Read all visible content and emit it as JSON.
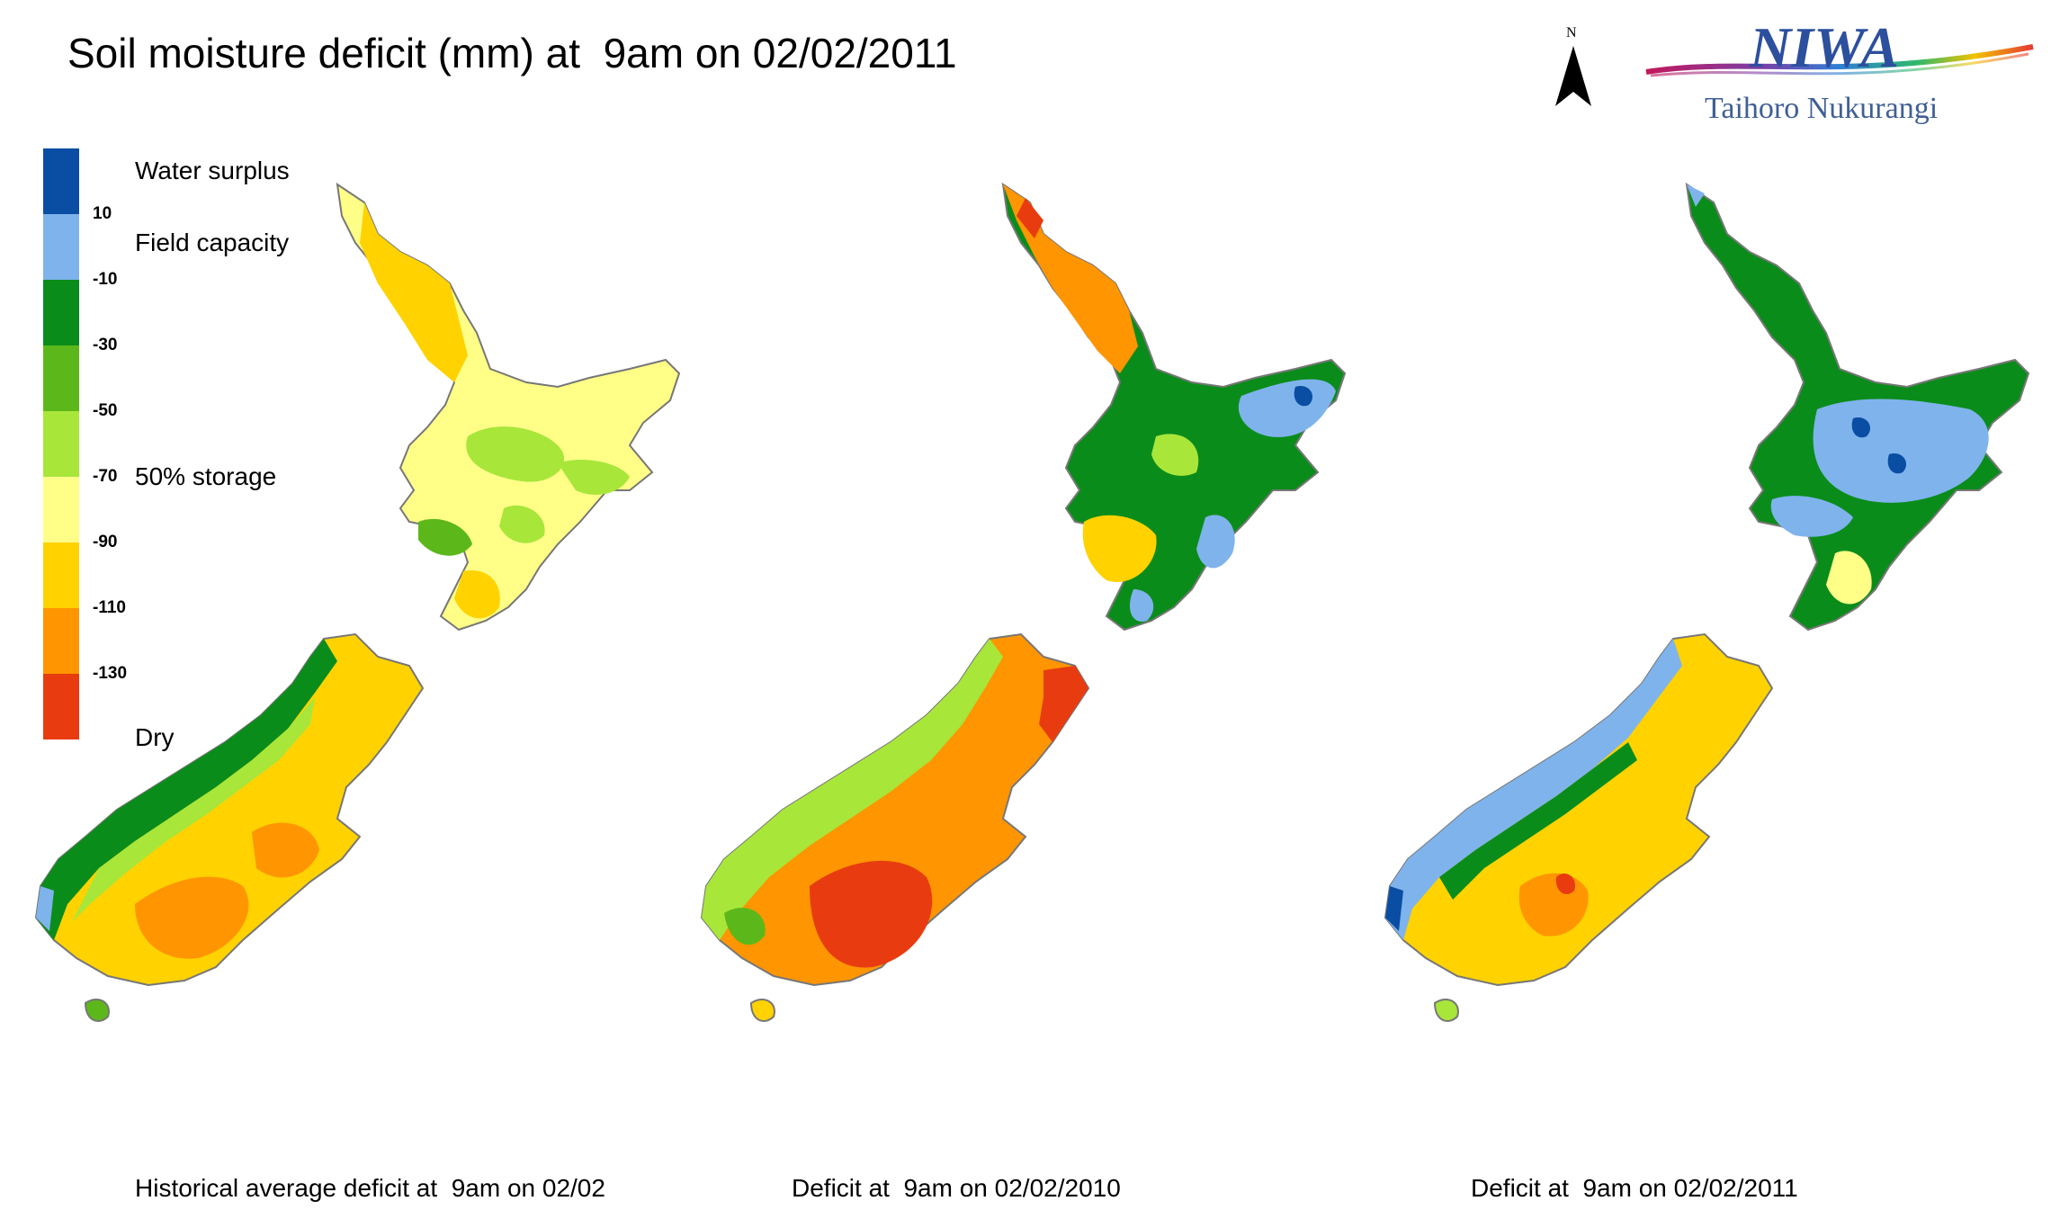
{
  "title": "Soil moisture deficit (mm) at  9am on 02/02/2011",
  "north_arrow": {
    "label": "N",
    "icon": "north-arrow-icon"
  },
  "logo": {
    "name": "NIWA",
    "subtitle": "Taihoro Nukurangi"
  },
  "legend": {
    "colors": [
      "#0a4ea3",
      "#7fb3ec",
      "#0a8c1a",
      "#5cb81a",
      "#a8e63a",
      "#ffff88",
      "#ffd200",
      "#ff9500",
      "#e83c10"
    ],
    "ticks": [
      "10",
      "-10",
      "-30",
      "-50",
      "-70",
      "-90",
      "-110",
      "-130"
    ],
    "labels": {
      "surplus": "Water surplus",
      "field_capacity": "Field capacity",
      "storage": "50% storage",
      "dry": "Dry"
    }
  },
  "maps": [
    {
      "caption": "Historical average deficit at  9am on 02/02"
    },
    {
      "caption": "Deficit at  9am on 02/02/2010"
    },
    {
      "caption": "Deficit at  9am on 02/02/2011"
    }
  ]
}
